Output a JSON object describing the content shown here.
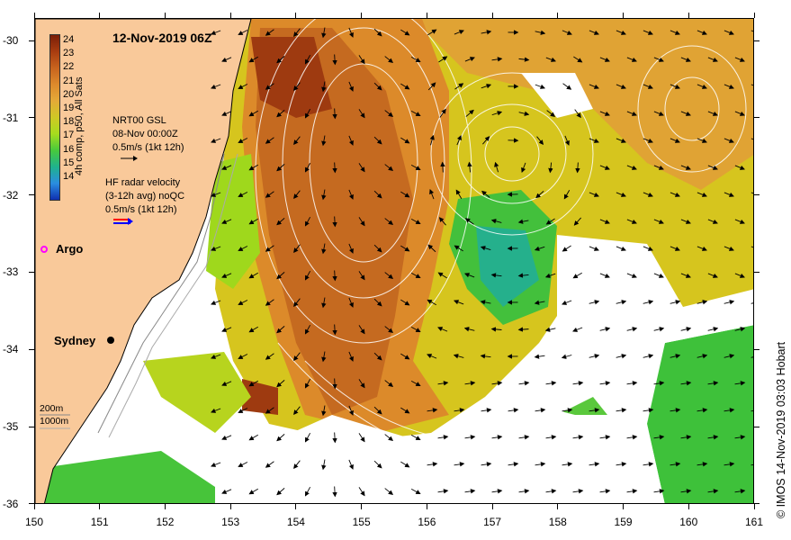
{
  "title": "12-Nov-2019 06Z",
  "credit": "© IMOS 14-Nov-2019 03:03 Hobart",
  "x_ticks": [
    "150",
    "151",
    "152",
    "153",
    "154",
    "155",
    "156",
    "157",
    "158",
    "159",
    "160",
    "161"
  ],
  "y_ticks": [
    "-30",
    "-31",
    "-32",
    "-33",
    "-34",
    "-35",
    "-36"
  ],
  "colorbar": {
    "title": "4h comp, p50, All Sats",
    "labels": [
      "24",
      "23",
      "22",
      "21",
      "20",
      "19",
      "18",
      "17",
      "16",
      "15",
      "14"
    ],
    "colors": [
      "#7a1e08",
      "#a83c10",
      "#c8641e",
      "#dd8a2c",
      "#e4aa38",
      "#cfc825",
      "#a6dd1e",
      "#48c93c",
      "#1fb28c",
      "#2a8de0",
      "#1030b0"
    ]
  },
  "legend": {
    "nrt_line1": "NRT00 GSL",
    "nrt_line2": "08-Nov 00:00Z",
    "nrt_line3": "0.5m/s (1kt 12h)",
    "hf_line1": "HF radar velocity",
    "hf_line2": "(3-12h avg) noQC",
    "hf_line3": "0.5m/s (1kt 12h)"
  },
  "places": {
    "argo": "Argo",
    "sydney": "Sydney"
  },
  "isobaths": {
    "shallow": "200m",
    "deep": "1000m"
  },
  "colors": {
    "land": "#f9c99a",
    "coastline": "#000000",
    "contour": "#ffffff",
    "arrow": "#000000",
    "argo": "#ff00ff"
  }
}
